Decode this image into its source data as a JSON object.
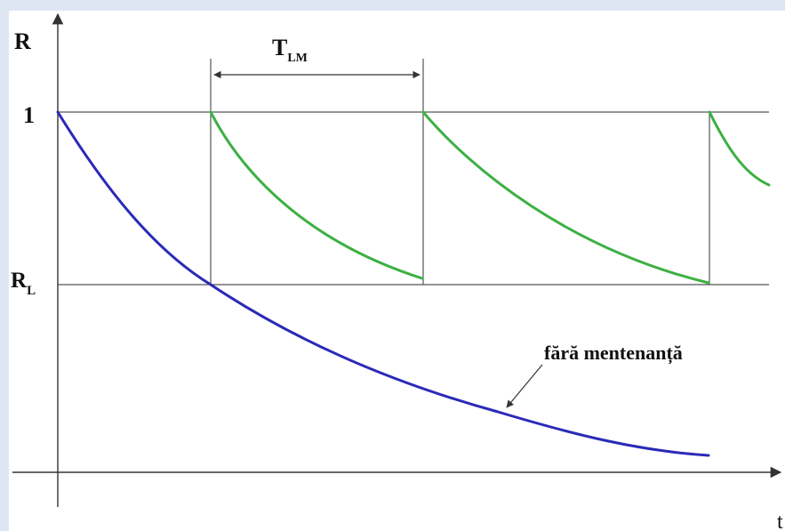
{
  "diagram": {
    "y_axis_label": "R",
    "x_axis_label": "t",
    "level_top_label": "1",
    "level_limit_label_main": "R",
    "level_limit_label_sub": "L",
    "interval_label_main": "T",
    "interval_label_sub": "LM",
    "annotation_text": "fără mentenanță",
    "colors": {
      "no_maintenance_curve": "#2a2ab8",
      "maintenance_curve": "#3cb043",
      "axes": "#333333",
      "guides": "#555555",
      "background": "#dfe6f3"
    }
  }
}
